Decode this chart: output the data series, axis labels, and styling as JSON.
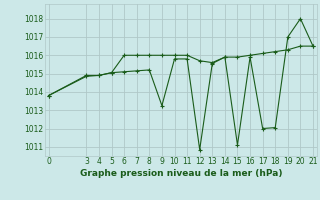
{
  "xlabel": "Graphe pression niveau de la mer (hPa)",
  "background_color": "#cce8e8",
  "grid_color": "#b0c8c8",
  "line_color": "#1a5c1a",
  "x_ticks": [
    0,
    3,
    4,
    5,
    6,
    7,
    8,
    9,
    10,
    11,
    12,
    13,
    14,
    15,
    16,
    17,
    18,
    19,
    20,
    21
  ],
  "ylim": [
    1010.5,
    1018.8
  ],
  "xlim": [
    -0.3,
    21.3
  ],
  "yticks": [
    1011,
    1012,
    1013,
    1014,
    1015,
    1016,
    1017,
    1018
  ],
  "series1_x": [
    0,
    3,
    4,
    5,
    6,
    7,
    8,
    9,
    10,
    11,
    12,
    13,
    14,
    15,
    16,
    17,
    18,
    19,
    20,
    21
  ],
  "series1_y": [
    1013.8,
    1014.9,
    1014.9,
    1015.05,
    1016.0,
    1016.0,
    1016.0,
    1016.0,
    1016.0,
    1016.0,
    1015.7,
    1015.6,
    1015.9,
    1015.9,
    1016.0,
    1016.1,
    1016.2,
    1016.3,
    1016.5,
    1016.5
  ],
  "series2_x": [
    0,
    3,
    4,
    5,
    6,
    7,
    8,
    9,
    10,
    11,
    12,
    13,
    14,
    15,
    16,
    17,
    18,
    19,
    20,
    21
  ],
  "series2_y": [
    1013.8,
    1014.85,
    1014.9,
    1015.05,
    1015.1,
    1015.15,
    1015.2,
    1013.25,
    1015.8,
    1015.8,
    1010.85,
    1015.55,
    1015.9,
    1011.1,
    1015.9,
    1012.0,
    1012.05,
    1017.0,
    1018.0,
    1016.5
  ]
}
